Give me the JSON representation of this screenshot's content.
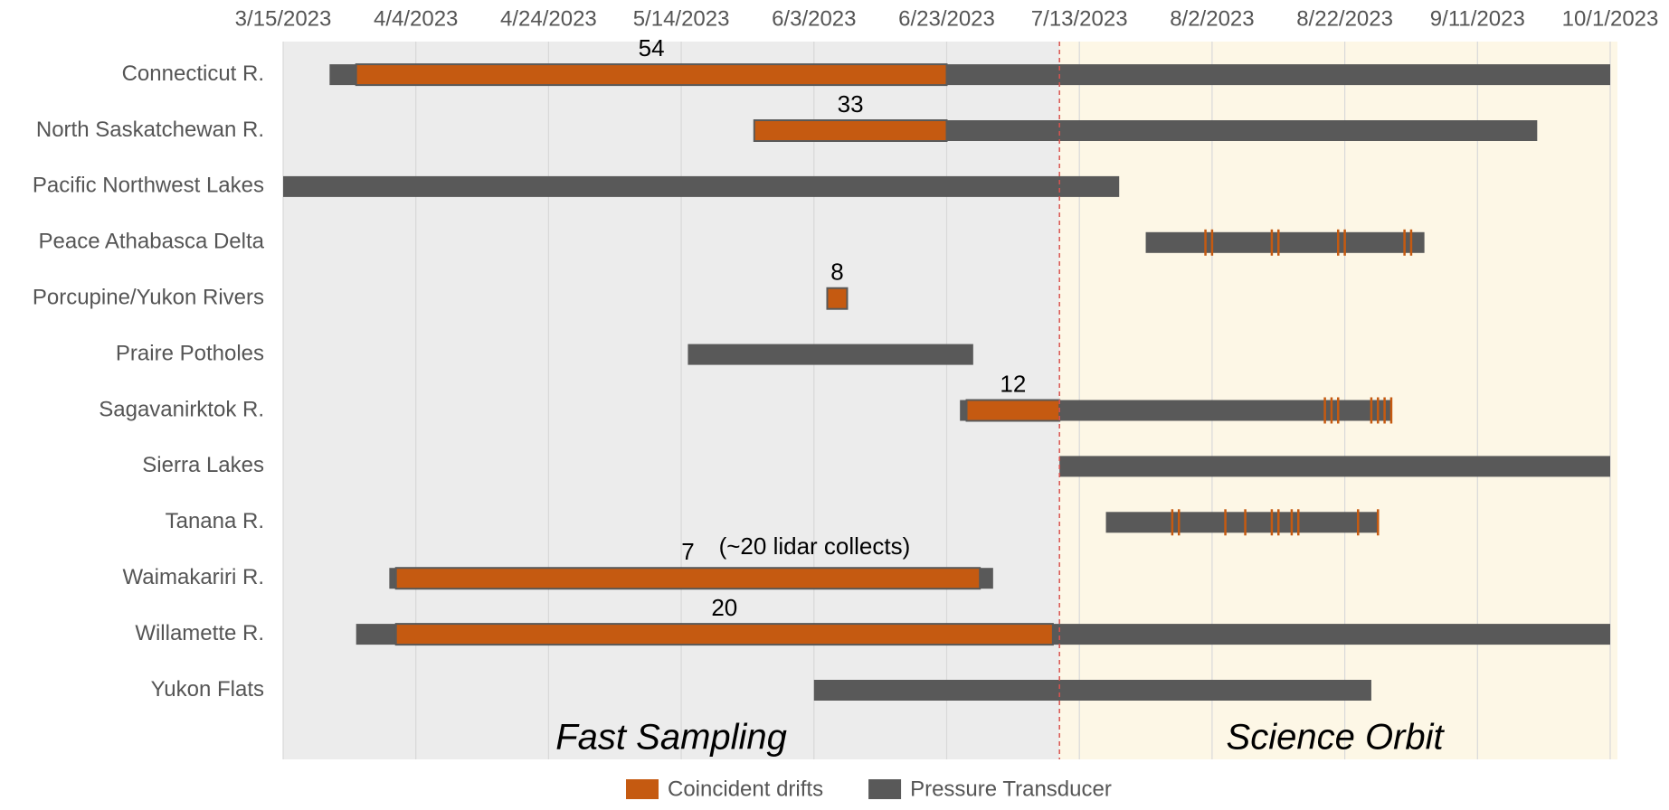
{
  "chart_data": {
    "type": "gantt",
    "categories": [
      "Connecticut R.",
      "North Saskatchewan R.",
      "Pacific Northwest Lakes",
      "Peace Athabasca Delta",
      "Porcupine/Yukon Rivers",
      "Praire Potholes",
      "Sagavanirktok R.",
      "Sierra Lakes",
      "Tanana R.",
      "Waimakariri R.",
      "Willamette R.",
      "Yukon Flats"
    ],
    "xlim": [
      "3/15/2023",
      "10/1/2023"
    ],
    "xticks": [
      "3/15/2023",
      "4/4/2023",
      "4/24/2023",
      "5/14/2023",
      "6/3/2023",
      "6/23/2023",
      "7/13/2023",
      "8/2/2023",
      "8/22/2023",
      "9/11/2023",
      "10/1/2023"
    ],
    "grid": true,
    "series": [
      {
        "name": "Coincident drifts",
        "color": "#c55a11",
        "ranges": [
          [
            "3/26/2023",
            "6/23/2023"
          ],
          [
            "5/25/2023",
            "6/23/2023"
          ],
          null,
          null,
          [
            "6/5/2023",
            "6/8/2023"
          ],
          null,
          [
            "6/26/2023",
            "7/10/2023"
          ],
          null,
          null,
          [
            "4/1/2023",
            "6/28/2023"
          ],
          [
            "4/1/2023",
            "7/9/2023"
          ],
          null
        ],
        "counts": [
          54,
          33,
          null,
          null,
          8,
          null,
          12,
          null,
          null,
          7,
          20,
          null
        ],
        "events": [
          [],
          [],
          [],
          [
            "8/1/2023",
            "8/2/2023",
            "8/11/2023",
            "8/12/2023",
            "8/21/2023",
            "8/22/2023",
            "8/31/2023",
            "9/1/2023"
          ],
          [],
          [],
          [
            "8/19/2023",
            "8/20/2023",
            "8/21/2023",
            "8/26/2023",
            "8/27/2023",
            "8/28/2023",
            "8/29/2023"
          ],
          [],
          [
            "7/27/2023",
            "7/28/2023",
            "8/4/2023",
            "8/7/2023",
            "8/11/2023",
            "8/12/2023",
            "8/14/2023",
            "8/15/2023",
            "8/24/2023",
            "8/27/2023"
          ],
          [],
          [],
          []
        ]
      },
      {
        "name": "Pressure Transducer",
        "color": "#595959",
        "ranges": [
          [
            "3/22/2023",
            "10/1/2023"
          ],
          [
            "5/25/2023",
            "9/20/2023"
          ],
          [
            "3/15/2023",
            "7/19/2023"
          ],
          [
            "7/23/2023",
            "9/3/2023"
          ],
          null,
          [
            "5/15/2023",
            "6/27/2023"
          ],
          [
            "6/25/2023",
            "8/29/2023"
          ],
          [
            "7/10/2023",
            "10/1/2023"
          ],
          [
            "7/17/2023",
            "8/27/2023"
          ],
          [
            "3/31/2023",
            "6/30/2023"
          ],
          [
            "3/26/2023",
            "10/1/2023"
          ],
          [
            "6/3/2023",
            "8/26/2023"
          ]
        ]
      }
    ],
    "phases": [
      {
        "label": "Fast Sampling",
        "start": "3/15/2023",
        "end": "7/10/2023",
        "color": "#ececec"
      },
      {
        "label": "Science Orbit",
        "start": "7/10/2023",
        "end": "10/1/2023",
        "color": "#fdf7e6"
      }
    ],
    "divider": "7/10/2023",
    "annotation": {
      "text": "(~20 lidar collects)",
      "category": 9
    }
  }
}
